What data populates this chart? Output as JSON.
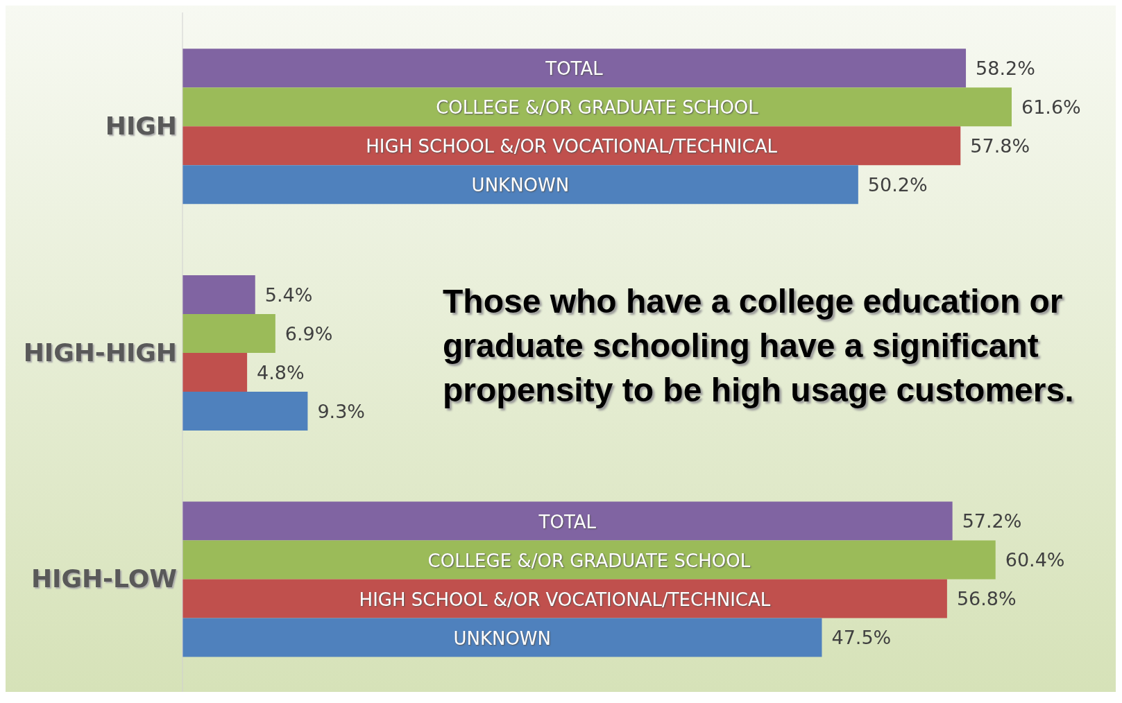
{
  "chart_data": {
    "type": "bar",
    "orientation": "horizontal",
    "categories": [
      "HIGH",
      "HIGH-HIGH",
      "HIGH-LOW"
    ],
    "series": [
      {
        "name": "TOTAL",
        "color": "#8064a2",
        "values": [
          58.2,
          5.4,
          57.2
        ],
        "value_labels": [
          "58.2%",
          "5.4%",
          "57.2%"
        ]
      },
      {
        "name": "COLLEGE &/OR GRADUATE SCHOOL",
        "color": "#9bbb59",
        "values": [
          61.6,
          6.9,
          60.4
        ],
        "value_labels": [
          "61.6%",
          "6.9%",
          "60.4%"
        ]
      },
      {
        "name": "HIGH SCHOOL &/OR VOCATIONAL/TECHNICAL",
        "color": "#c0504d",
        "values": [
          57.8,
          4.8,
          56.8
        ],
        "value_labels": [
          "57.8%",
          "4.8%",
          "56.8%"
        ]
      },
      {
        "name": "UNKNOWN",
        "color": "#4f81bd",
        "values": [
          50.2,
          9.3,
          47.5
        ],
        "value_labels": [
          "50.2%",
          "9.3%",
          "47.5%"
        ]
      }
    ],
    "annotations": [
      "Those who have a college education or graduate schooling have a significant propensity to be high usage customers."
    ]
  }
}
